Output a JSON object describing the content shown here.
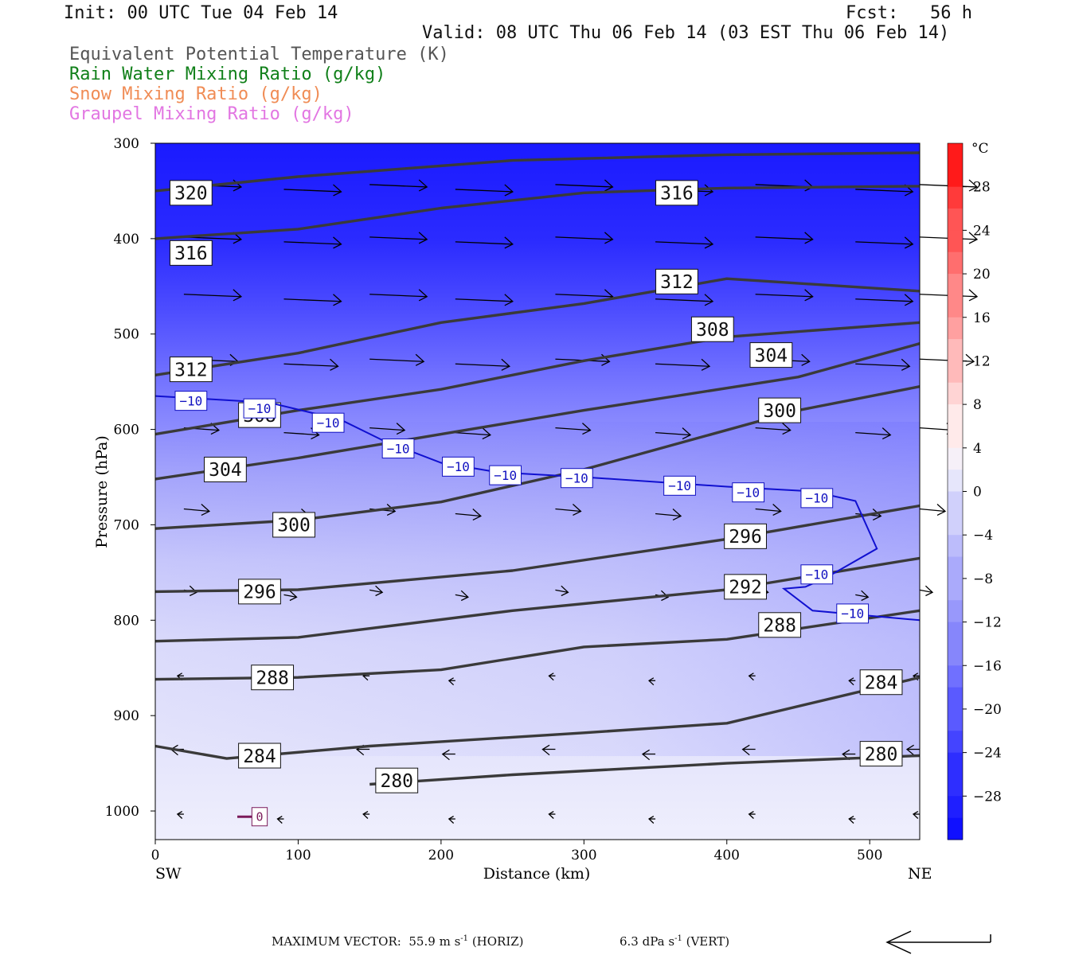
{
  "header": {
    "init": "Init: 00 UTC Tue 04 Feb 14",
    "fcst": "Fcst:   56 h",
    "valid": "Valid: 08 UTC Thu 06 Feb 14 (03 EST Thu 06 Feb 14)"
  },
  "legend": [
    {
      "label": "Equivalent Potential Temperature (K)",
      "color": "#555555"
    },
    {
      "label": "Rain Water Mixing Ratio (g/kg)",
      "color": "#11801a"
    },
    {
      "label": "Snow Mixing Ratio (g/kg)",
      "color": "#f08c55"
    },
    {
      "label": "Graupel Mixing Ratio (g/kg)",
      "color": "#e276e2"
    }
  ],
  "footer": {
    "max_vector_label": "MAXIMUM VECTOR:",
    "horiz_value": "55.9",
    "horiz_units": "m s",
    "horiz_exp": "-1",
    "horiz_tag": "(HORIZ)",
    "vert_value": "6.3",
    "vert_units": "dPa s",
    "vert_exp": "-1",
    "vert_tag": "(VERT)"
  },
  "chart_data": {
    "type": "cross-section contour",
    "xlabel": "Distance (km)",
    "ylabel": "Pressure (hPa)",
    "x_ticks": [
      0,
      100,
      200,
      300,
      400,
      500
    ],
    "y_ticks": [
      300,
      400,
      500,
      600,
      700,
      800,
      900,
      1000
    ],
    "xlim": [
      0,
      535
    ],
    "ylim": [
      1030,
      300
    ],
    "left_end_label": "SW",
    "right_end_label": "NE",
    "colorbar": {
      "unit": "°C",
      "ticks": [
        "28",
        "24",
        "20",
        "16",
        "12",
        "8",
        "4",
        "0",
        "−4",
        "−8",
        "−12",
        "−16",
        "−20",
        "−24",
        "−28"
      ],
      "range": [
        -32,
        32
      ],
      "step": 4
    },
    "theta_e_contours": [
      {
        "value": 320,
        "points": [
          [
            0,
            350
          ],
          [
            100,
            335
          ],
          [
            250,
            318
          ],
          [
            400,
            312
          ],
          [
            535,
            310
          ]
        ],
        "labels": [
          [
            25,
            352
          ]
        ]
      },
      {
        "value": 316,
        "points": [
          [
            0,
            400
          ],
          [
            100,
            390
          ],
          [
            200,
            368
          ],
          [
            300,
            352
          ],
          [
            400,
            347
          ],
          [
            535,
            345
          ]
        ],
        "labels": [
          [
            25,
            415
          ],
          [
            365,
            352
          ]
        ]
      },
      {
        "value": 312,
        "points": [
          [
            0,
            543
          ],
          [
            100,
            520
          ],
          [
            200,
            488
          ],
          [
            300,
            468
          ],
          [
            400,
            442
          ],
          [
            535,
            455
          ]
        ],
        "labels": [
          [
            25,
            537
          ],
          [
            365,
            445
          ]
        ]
      },
      {
        "value": 308,
        "points": [
          [
            0,
            605
          ],
          [
            100,
            580
          ],
          [
            200,
            558
          ],
          [
            300,
            528
          ],
          [
            400,
            503
          ],
          [
            535,
            488
          ]
        ],
        "labels": [
          [
            73,
            585
          ],
          [
            390,
            495
          ]
        ]
      },
      {
        "value": 304,
        "points": [
          [
            0,
            652
          ],
          [
            100,
            630
          ],
          [
            200,
            605
          ],
          [
            300,
            580
          ],
          [
            450,
            545
          ],
          [
            535,
            510
          ]
        ],
        "labels": [
          [
            49,
            642
          ],
          [
            431,
            522
          ]
        ]
      },
      {
        "value": 300,
        "points": [
          [
            0,
            704
          ],
          [
            100,
            695
          ],
          [
            200,
            676
          ],
          [
            300,
            642
          ],
          [
            450,
            580
          ],
          [
            535,
            555
          ]
        ],
        "labels": [
          [
            97,
            700
          ],
          [
            437,
            580
          ]
        ]
      },
      {
        "value": 296,
        "points": [
          [
            0,
            770
          ],
          [
            100,
            768
          ],
          [
            250,
            748
          ],
          [
            400,
            715
          ],
          [
            535,
            680
          ]
        ],
        "labels": [
          [
            73,
            770
          ],
          [
            413,
            712
          ]
        ]
      },
      {
        "value": 292,
        "points": [
          [
            0,
            822
          ],
          [
            100,
            818
          ],
          [
            250,
            790
          ],
          [
            400,
            768
          ],
          [
            535,
            735
          ]
        ],
        "labels": [
          [
            413,
            765
          ]
        ]
      },
      {
        "value": 288,
        "points": [
          [
            0,
            862
          ],
          [
            100,
            860
          ],
          [
            200,
            852
          ],
          [
            300,
            828
          ],
          [
            400,
            820
          ],
          [
            535,
            790
          ]
        ],
        "labels": [
          [
            82,
            860
          ],
          [
            437,
            805
          ]
        ]
      },
      {
        "value": 284,
        "points": [
          [
            0,
            932
          ],
          [
            50,
            945
          ],
          [
            150,
            932
          ],
          [
            300,
            918
          ],
          [
            400,
            908
          ],
          [
            535,
            860
          ]
        ],
        "labels": [
          [
            73,
            942
          ],
          [
            508,
            865
          ]
        ]
      },
      {
        "value": 280,
        "points": [
          [
            150,
            972
          ],
          [
            250,
            962
          ],
          [
            400,
            950
          ],
          [
            535,
            942
          ]
        ],
        "labels": [
          [
            169,
            968
          ],
          [
            508,
            940
          ]
        ]
      }
    ],
    "temperature_contour": {
      "value": "−10",
      "points": [
        [
          0,
          565
        ],
        [
          80,
          572
        ],
        [
          130,
          590
        ],
        [
          160,
          612
        ],
        [
          200,
          635
        ],
        [
          240,
          645
        ],
        [
          300,
          650
        ],
        [
          400,
          660
        ],
        [
          460,
          665
        ],
        [
          490,
          675
        ],
        [
          505,
          725
        ],
        [
          470,
          755
        ],
        [
          455,
          765
        ],
        [
          440,
          767
        ],
        [
          460,
          790
        ],
        [
          535,
          800
        ]
      ],
      "labels": [
        [
          25,
          570
        ],
        [
          73,
          578
        ],
        [
          121,
          593
        ],
        [
          170,
          620
        ],
        [
          212,
          639
        ],
        [
          245,
          648
        ],
        [
          295,
          651
        ],
        [
          367,
          659
        ],
        [
          415,
          666
        ],
        [
          463,
          672
        ],
        [
          463,
          752
        ],
        [
          488,
          793
        ]
      ]
    },
    "graupel_label": {
      "value": "0",
      "at": [
        73,
        1006
      ]
    },
    "wind_rows": [
      {
        "p": 345,
        "len": 0.9
      },
      {
        "p": 400,
        "len": 0.9
      },
      {
        "p": 460,
        "len": 0.9
      },
      {
        "p": 528,
        "len": 0.85
      },
      {
        "p": 600,
        "len": 0.55
      },
      {
        "p": 685,
        "len": 0.4
      },
      {
        "p": 770,
        "len": 0.2
      },
      {
        "p": 860,
        "len": -0.1
      },
      {
        "p": 937,
        "len": -0.2
      },
      {
        "p": 1005,
        "len": -0.1
      }
    ]
  }
}
